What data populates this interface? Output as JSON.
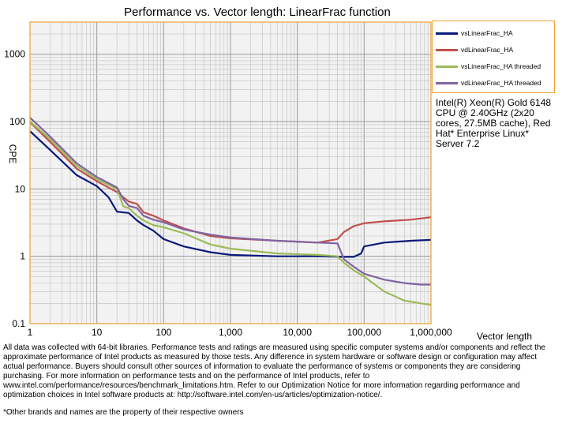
{
  "chart_data": {
    "type": "line",
    "title": "Performance vs. Vector length: LinearFrac function",
    "xlabel": "Vector length",
    "ylabel": "CPE",
    "x_scale": "log",
    "y_scale": "log",
    "xlim": [
      1,
      1000000
    ],
    "ylim": [
      0.1,
      3000
    ],
    "x_ticks": [
      "1",
      "10",
      "100",
      "1,000",
      "10,000",
      "100,000",
      "1,000,000"
    ],
    "y_ticks": [
      "0.1",
      "1",
      "10",
      "100",
      "1000"
    ],
    "grid": true,
    "legend_position": "top-right",
    "series": [
      {
        "name": "vsLinearFrac_HA",
        "color": "#0a1a7a",
        "points": [
          [
            1,
            72
          ],
          [
            2,
            38
          ],
          [
            5,
            16
          ],
          [
            10,
            11
          ],
          [
            15,
            7.5
          ],
          [
            20,
            4.6
          ],
          [
            30,
            4.4
          ],
          [
            40,
            3.4
          ],
          [
            50,
            2.9
          ],
          [
            70,
            2.4
          ],
          [
            100,
            1.8
          ],
          [
            200,
            1.4
          ],
          [
            500,
            1.15
          ],
          [
            1000,
            1.05
          ],
          [
            5000,
            1.0
          ],
          [
            20000,
            1.0
          ],
          [
            50000,
            0.98
          ],
          [
            70000,
            0.98
          ],
          [
            90000,
            1.1
          ],
          [
            100000,
            1.4
          ],
          [
            200000,
            1.6
          ],
          [
            500000,
            1.7
          ],
          [
            1000000,
            1.75
          ]
        ]
      },
      {
        "name": "vdLinearFrac_HA",
        "color": "#c0504d",
        "points": [
          [
            1,
            98
          ],
          [
            2,
            50
          ],
          [
            5,
            20
          ],
          [
            10,
            13
          ],
          [
            20,
            9
          ],
          [
            30,
            6.5
          ],
          [
            40,
            6.0
          ],
          [
            50,
            4.5
          ],
          [
            70,
            4.0
          ],
          [
            100,
            3.4
          ],
          [
            200,
            2.6
          ],
          [
            500,
            2.0
          ],
          [
            1000,
            1.85
          ],
          [
            5000,
            1.7
          ],
          [
            20000,
            1.6
          ],
          [
            40000,
            1.8
          ],
          [
            50000,
            2.3
          ],
          [
            70000,
            2.8
          ],
          [
            100000,
            3.1
          ],
          [
            200000,
            3.3
          ],
          [
            500000,
            3.5
          ],
          [
            1000000,
            3.8
          ]
        ]
      },
      {
        "name": "vsLinearFrac_HA threaded",
        "color": "#9bbb59",
        "points": [
          [
            1,
            100
          ],
          [
            2,
            55
          ],
          [
            5,
            22
          ],
          [
            10,
            14
          ],
          [
            20,
            10
          ],
          [
            25,
            5.5
          ],
          [
            30,
            5.2
          ],
          [
            40,
            4.0
          ],
          [
            50,
            3.4
          ],
          [
            70,
            2.9
          ],
          [
            100,
            2.7
          ],
          [
            200,
            2.2
          ],
          [
            500,
            1.5
          ],
          [
            1000,
            1.3
          ],
          [
            5000,
            1.1
          ],
          [
            20000,
            1.05
          ],
          [
            40000,
            1.0
          ],
          [
            50000,
            0.8
          ],
          [
            70000,
            0.62
          ],
          [
            100000,
            0.5
          ],
          [
            200000,
            0.3
          ],
          [
            400000,
            0.22
          ],
          [
            700000,
            0.2
          ],
          [
            1000000,
            0.19
          ]
        ]
      },
      {
        "name": "vdLinearFrac_HA threaded",
        "color": "#8064a2",
        "points": [
          [
            1,
            115
          ],
          [
            2,
            60
          ],
          [
            5,
            24
          ],
          [
            10,
            15
          ],
          [
            20,
            10.5
          ],
          [
            25,
            7.0
          ],
          [
            30,
            5.6
          ],
          [
            40,
            5.2
          ],
          [
            50,
            4.0
          ],
          [
            70,
            3.5
          ],
          [
            100,
            3.2
          ],
          [
            200,
            2.5
          ],
          [
            500,
            2.1
          ],
          [
            1000,
            1.9
          ],
          [
            5000,
            1.7
          ],
          [
            20000,
            1.6
          ],
          [
            40000,
            1.55
          ],
          [
            50000,
            0.9
          ],
          [
            70000,
            0.7
          ],
          [
            100000,
            0.55
          ],
          [
            200000,
            0.45
          ],
          [
            400000,
            0.4
          ],
          [
            700000,
            0.38
          ],
          [
            1000000,
            0.38
          ]
        ]
      }
    ]
  },
  "annotation": "Intel(R) Xeon(R) Gold 6148 CPU @ 2.40GHz (2x20 cores, 27.5MB cache), Red Hat* Enterprise Linux* Server 7.2",
  "footnote": "All data was collected with 64-bit libraries. Performance tests and ratings are measured using specific computer systems and/or components and reflect the approximate performance of Intel products as measured by those tests. Any difference in system hardware or software design or configuration may affect actual performance. Buyers should consult other sources of information to evaluate the performance of systems or components they are considering purchasing. For more information on performance tests and on the performance of Intel products, refer to www.intel.com/performance/resources/benchmark_limitations.htm. Refer to our Optimization Notice for more information regarding performance and optimization choices in Intel software products at: http://software.intel.com/en-us/articles/optimization-notice/.",
  "footnote2": "*Other brands and names are the property of their respective owners"
}
